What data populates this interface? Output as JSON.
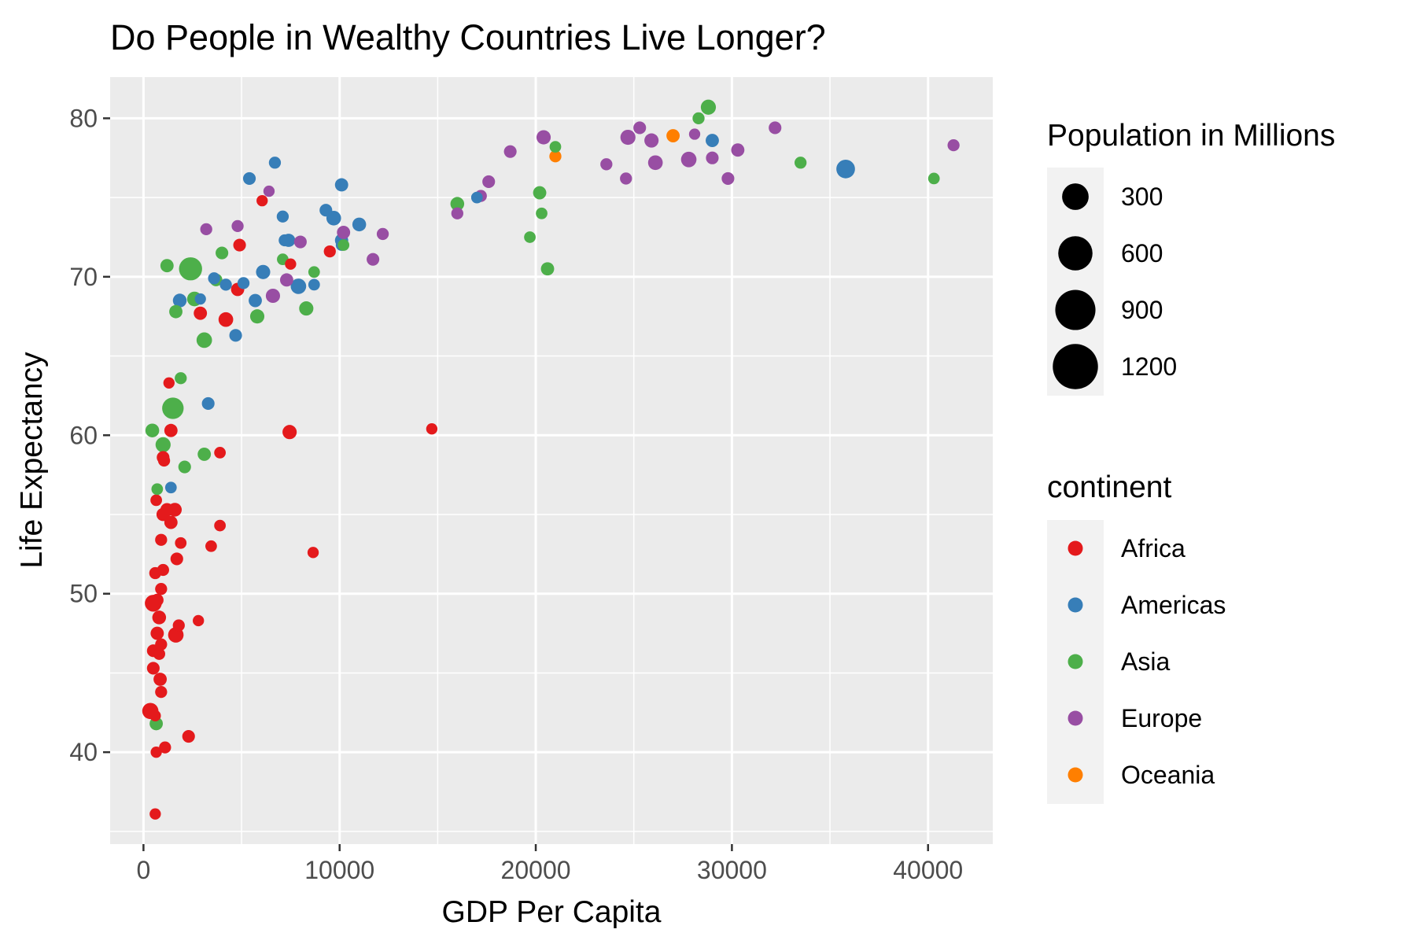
{
  "chart_data": {
    "type": "scatter",
    "title": "Do People in Wealthy Countries Live Longer?",
    "xlabel": "GDP Per Capita",
    "ylabel": "Life Expectancy",
    "xlim": [
      -1700,
      43300
    ],
    "ylim": [
      34.2,
      82.6
    ],
    "x_ticks": [
      0,
      10000,
      20000,
      30000,
      40000
    ],
    "y_ticks": [
      40,
      50,
      60,
      70,
      80
    ],
    "grid": true,
    "legend_position": "right",
    "size_legend": {
      "title": "Population in Millions",
      "entries": [
        {
          "value": 300,
          "label": "300"
        },
        {
          "value": 600,
          "label": "600"
        },
        {
          "value": 900,
          "label": "900"
        },
        {
          "value": 1200,
          "label": "1200"
        }
      ]
    },
    "color_legend": {
      "title": "continent",
      "entries": [
        {
          "name": "Africa",
          "color": "#e41a1c"
        },
        {
          "name": "Americas",
          "color": "#377eb8"
        },
        {
          "name": "Asia",
          "color": "#4daf4a"
        },
        {
          "name": "Europe",
          "color": "#984ea3"
        },
        {
          "name": "Oceania",
          "color": "#ff7f00"
        }
      ]
    },
    "series": [
      {
        "name": "Africa",
        "color": "#e41a1c",
        "points": [
          [
            600,
            36.1,
            10
          ],
          [
            650,
            40.0,
            10
          ],
          [
            1100,
            40.3,
            15
          ],
          [
            2300,
            41.0,
            20
          ],
          [
            350,
            42.6,
            60
          ],
          [
            600,
            42.3,
            10
          ],
          [
            900,
            43.8,
            15
          ],
          [
            850,
            44.6,
            25
          ],
          [
            500,
            45.3,
            20
          ],
          [
            800,
            46.2,
            15
          ],
          [
            500,
            46.4,
            20
          ],
          [
            900,
            46.8,
            15
          ],
          [
            700,
            47.5,
            25
          ],
          [
            1650,
            47.4,
            50
          ],
          [
            1800,
            48.0,
            15
          ],
          [
            2800,
            48.3,
            10
          ],
          [
            800,
            48.5,
            30
          ],
          [
            500,
            49.4,
            70
          ],
          [
            700,
            49.6,
            20
          ],
          [
            900,
            50.3,
            15
          ],
          [
            600,
            51.3,
            15
          ],
          [
            1000,
            51.5,
            15
          ],
          [
            1700,
            52.2,
            20
          ],
          [
            8650,
            52.6,
            10
          ],
          [
            3450,
            53.0,
            12
          ],
          [
            900,
            53.4,
            15
          ],
          [
            1900,
            53.2,
            12
          ],
          [
            3900,
            54.3,
            12
          ],
          [
            1400,
            54.5,
            25
          ],
          [
            1000,
            55.0,
            25
          ],
          [
            1200,
            55.3,
            25
          ],
          [
            1600,
            55.3,
            30
          ],
          [
            650,
            55.9,
            12
          ],
          [
            1050,
            58.4,
            15
          ],
          [
            1000,
            58.6,
            20
          ],
          [
            3900,
            58.9,
            12
          ],
          [
            1400,
            60.3,
            25
          ],
          [
            7450,
            60.2,
            35
          ],
          [
            14700,
            60.4,
            10
          ],
          [
            1300,
            63.3,
            10
          ],
          [
            2900,
            67.7,
            25
          ],
          [
            4200,
            67.3,
            40
          ],
          [
            4800,
            69.2,
            25
          ],
          [
            9500,
            71.6,
            15
          ],
          [
            7500,
            70.8,
            10
          ],
          [
            4900,
            72.0,
            20
          ],
          [
            6050,
            74.8,
            10
          ]
        ]
      },
      {
        "name": "Americas",
        "color": "#377eb8",
        "points": [
          [
            1400,
            56.7,
            12
          ],
          [
            3300,
            62.0,
            20
          ],
          [
            4700,
            66.3,
            20
          ],
          [
            1850,
            68.5,
            30
          ],
          [
            3600,
            69.9,
            15
          ],
          [
            2900,
            68.6,
            10
          ],
          [
            4200,
            69.5,
            15
          ],
          [
            5100,
            69.6,
            15
          ],
          [
            5700,
            68.5,
            25
          ],
          [
            6100,
            70.3,
            35
          ],
          [
            8700,
            69.5,
            12
          ],
          [
            7400,
            72.3,
            25
          ],
          [
            7100,
            73.8,
            15
          ],
          [
            7900,
            69.4,
            50
          ],
          [
            9300,
            74.2,
            20
          ],
          [
            9700,
            73.7,
            40
          ],
          [
            10100,
            72.3,
            25
          ],
          [
            10100,
            75.8,
            25
          ],
          [
            11000,
            73.3,
            30
          ],
          [
            5400,
            76.2,
            20
          ],
          [
            6700,
            77.2,
            15
          ],
          [
            17000,
            75.0,
            12
          ],
          [
            29000,
            78.6,
            25
          ],
          [
            35800,
            76.8,
            100
          ],
          [
            7200,
            72.3,
            15
          ],
          [
            10100,
            72.0,
            12
          ]
        ]
      },
      {
        "name": "Asia",
        "color": "#4daf4a",
        "points": [
          [
            2400,
            70.5,
            200
          ],
          [
            1500,
            61.7,
            160
          ],
          [
            3100,
            66.0,
            50
          ],
          [
            2600,
            68.6,
            40
          ],
          [
            1200,
            70.7,
            25
          ],
          [
            1650,
            67.8,
            25
          ],
          [
            3700,
            69.8,
            20
          ],
          [
            4000,
            71.5,
            20
          ],
          [
            5800,
            67.5,
            35
          ],
          [
            8300,
            68.0,
            35
          ],
          [
            7100,
            71.1,
            12
          ],
          [
            8700,
            70.3,
            12
          ],
          [
            10200,
            72.0,
            12
          ],
          [
            16000,
            74.6,
            30
          ],
          [
            20200,
            75.3,
            25
          ],
          [
            20300,
            74.0,
            12
          ],
          [
            19700,
            72.5,
            12
          ],
          [
            20600,
            70.5,
            25
          ],
          [
            21000,
            78.2,
            12
          ],
          [
            28300,
            80.0,
            15
          ],
          [
            28800,
            80.7,
            45
          ],
          [
            33500,
            77.2,
            15
          ],
          [
            40300,
            76.2,
            12
          ],
          [
            1900,
            63.6,
            15
          ],
          [
            450,
            60.3,
            30
          ],
          [
            1000,
            59.4,
            45
          ],
          [
            2100,
            58.0,
            20
          ],
          [
            3100,
            58.8,
            25
          ],
          [
            700,
            56.6,
            12
          ],
          [
            650,
            41.8,
            25
          ]
        ]
      },
      {
        "name": "Europe",
        "color": "#984ea3",
        "points": [
          [
            3200,
            73.0,
            15
          ],
          [
            4800,
            73.2,
            15
          ],
          [
            6400,
            75.4,
            10
          ],
          [
            6600,
            68.8,
            35
          ],
          [
            7300,
            69.8,
            25
          ],
          [
            8000,
            72.2,
            20
          ],
          [
            10200,
            72.8,
            25
          ],
          [
            11700,
            71.1,
            20
          ],
          [
            12200,
            72.7,
            15
          ],
          [
            16000,
            74.0,
            15
          ],
          [
            17200,
            75.1,
            15
          ],
          [
            17600,
            76.0,
            20
          ],
          [
            18700,
            77.9,
            20
          ],
          [
            20400,
            78.8,
            35
          ],
          [
            23600,
            77.1,
            15
          ],
          [
            24600,
            76.2,
            15
          ],
          [
            24700,
            78.8,
            45
          ],
          [
            25300,
            79.4,
            20
          ],
          [
            25900,
            78.6,
            35
          ],
          [
            26100,
            77.2,
            40
          ],
          [
            27800,
            77.4,
            50
          ],
          [
            28100,
            79.0,
            10
          ],
          [
            29000,
            77.5,
            20
          ],
          [
            29800,
            76.2,
            20
          ],
          [
            30300,
            78.0,
            25
          ],
          [
            32200,
            79.4,
            20
          ],
          [
            41300,
            78.3,
            15
          ]
        ]
      },
      {
        "name": "Oceania",
        "color": "#ff7f00",
        "points": [
          [
            21000,
            77.6,
            15
          ],
          [
            27000,
            78.9,
            25
          ]
        ]
      }
    ]
  }
}
